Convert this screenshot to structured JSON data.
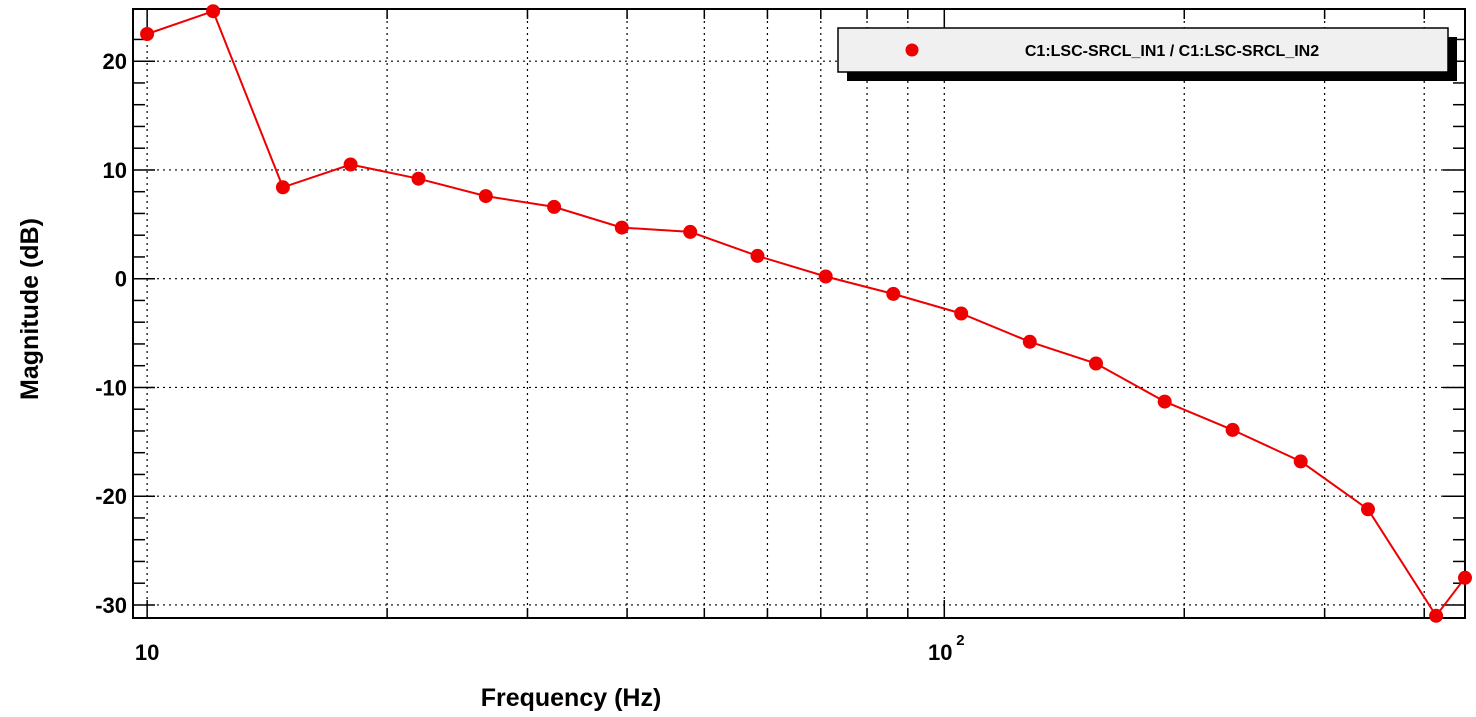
{
  "chart_data": {
    "type": "line",
    "xlabel": "Frequency (Hz)",
    "ylabel": "Magnitude (dB)",
    "xscale": "log",
    "xlim": [
      9.6,
      450
    ],
    "ylim": [
      -31.2,
      24.8
    ],
    "grid": true,
    "legend_position": "top-right",
    "series_color": "#ee0000",
    "x_ticks": [
      {
        "value": 10,
        "label": "10"
      },
      {
        "value": 100,
        "base": "10",
        "exp": "2"
      }
    ],
    "y_ticks": [
      {
        "value": 20,
        "label": "20"
      },
      {
        "value": 10,
        "label": "10"
      },
      {
        "value": 0,
        "label": "0"
      },
      {
        "value": -10,
        "label": "-10"
      },
      {
        "value": -20,
        "label": "-20"
      },
      {
        "value": -30,
        "label": "-30"
      }
    ],
    "series": [
      {
        "name": "C1:LSC-SRCL_IN1 / C1:LSC-SRCL_IN2",
        "x": [
          10,
          12.1,
          14.8,
          18.0,
          21.9,
          26.6,
          32.4,
          39.4,
          48.0,
          58.3,
          71.0,
          86.3,
          105,
          128,
          155,
          189,
          230,
          280,
          340,
          414,
          450
        ],
        "y": [
          22.5,
          24.6,
          8.4,
          10.5,
          9.2,
          7.6,
          6.6,
          4.7,
          4.3,
          2.1,
          0.2,
          -1.4,
          -3.2,
          -5.8,
          -7.8,
          -11.3,
          -13.9,
          -16.8,
          -21.2,
          -31.0,
          -27.5
        ]
      }
    ]
  }
}
